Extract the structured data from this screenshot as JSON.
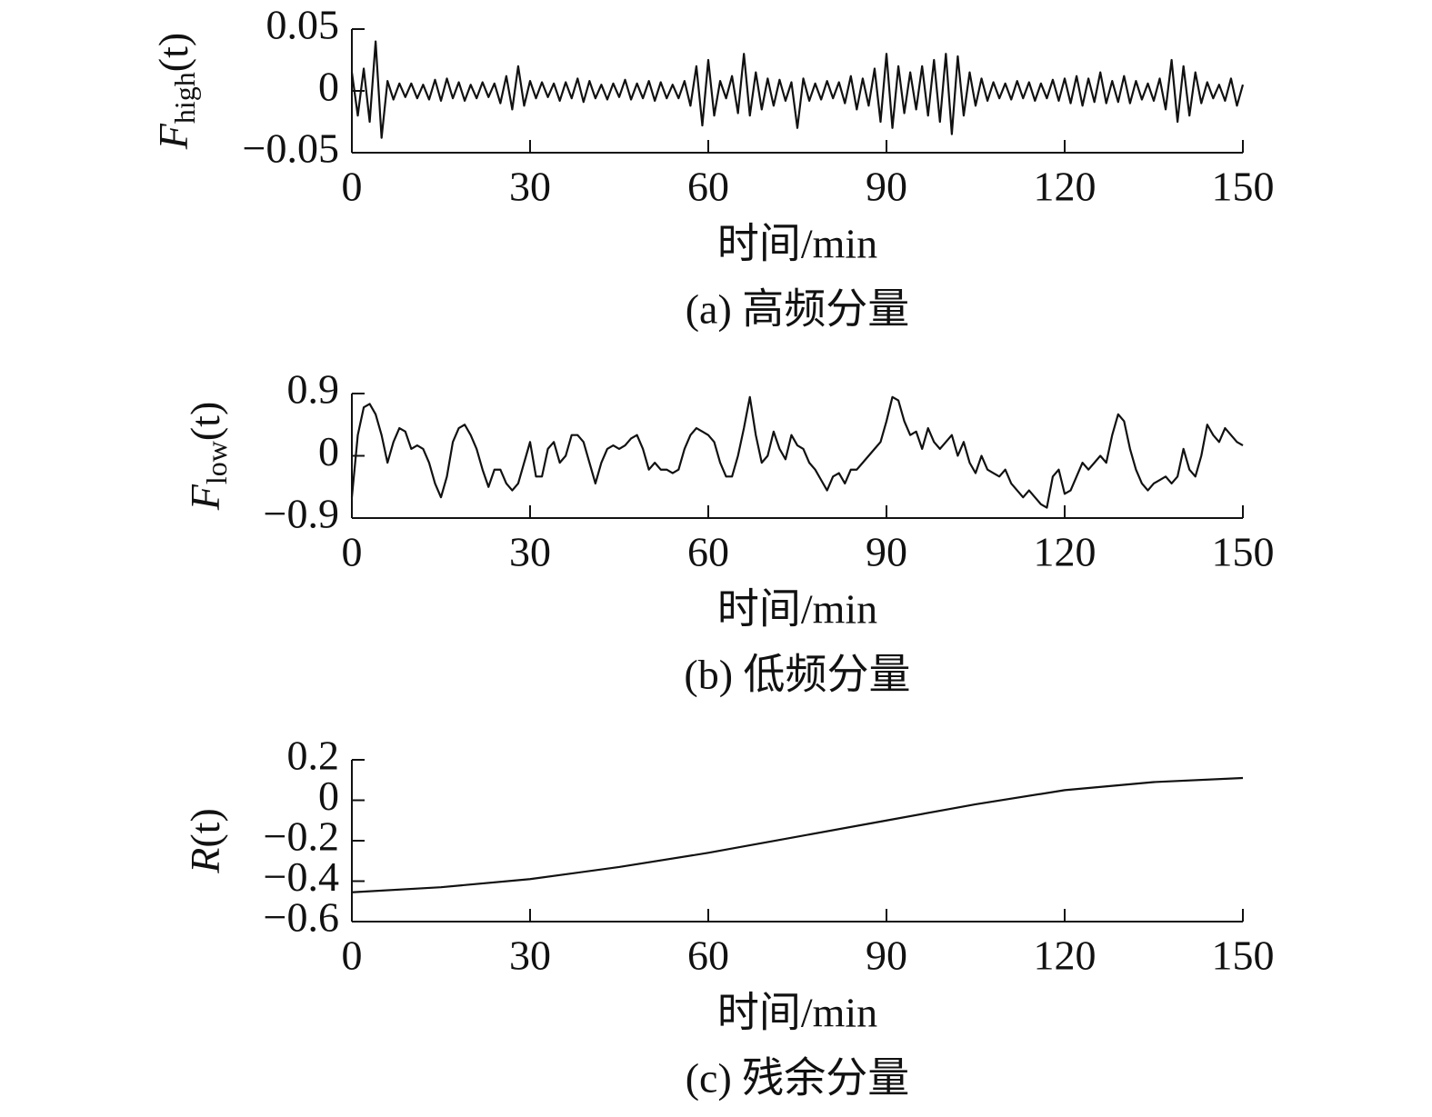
{
  "chart_data": [
    {
      "type": "line",
      "ylabel": {
        "base": "F",
        "sub": "high",
        "arg": "(t)"
      },
      "xlabel": "时间/min",
      "caption": "(a) 高频分量",
      "xlim": [
        0,
        150
      ],
      "xticks": [
        0,
        30,
        60,
        90,
        120,
        150
      ],
      "ylim": [
        -0.05,
        0.05
      ],
      "yticks": [
        {
          "value": -0.05,
          "label": "−0.05"
        },
        0,
        0.05
      ],
      "color": "#111111",
      "x": [
        0,
        1,
        2,
        3,
        4,
        5,
        6,
        7,
        8,
        9,
        10,
        11,
        12,
        13,
        14,
        15,
        16,
        17,
        18,
        19,
        20,
        21,
        22,
        23,
        24,
        25,
        26,
        27,
        28,
        29,
        30,
        31,
        32,
        33,
        34,
        35,
        36,
        37,
        38,
        39,
        40,
        41,
        42,
        43,
        44,
        45,
        46,
        47,
        48,
        49,
        50,
        51,
        52,
        53,
        54,
        55,
        56,
        57,
        58,
        59,
        60,
        61,
        62,
        63,
        64,
        65,
        66,
        67,
        68,
        69,
        70,
        71,
        72,
        73,
        74,
        75,
        76,
        77,
        78,
        79,
        80,
        81,
        82,
        83,
        84,
        85,
        86,
        87,
        88,
        89,
        90,
        91,
        92,
        93,
        94,
        95,
        96,
        97,
        98,
        99,
        100,
        101,
        102,
        103,
        104,
        105,
        106,
        107,
        108,
        109,
        110,
        111,
        112,
        113,
        114,
        115,
        116,
        117,
        118,
        119,
        120,
        121,
        122,
        123,
        124,
        125,
        126,
        127,
        128,
        129,
        130,
        131,
        132,
        133,
        134,
        135,
        136,
        137,
        138,
        139,
        140,
        141,
        142,
        143,
        144,
        145,
        146,
        147,
        148,
        149,
        150
      ],
      "values": [
        0.015,
        -0.02,
        0.018,
        -0.025,
        0.04,
        -0.038,
        0.008,
        -0.007,
        0.006,
        -0.005,
        0.006,
        -0.006,
        0.005,
        -0.007,
        0.009,
        -0.008,
        0.01,
        -0.006,
        0.007,
        -0.008,
        0.005,
        -0.006,
        0.007,
        -0.005,
        0.006,
        -0.01,
        0.012,
        -0.015,
        0.02,
        -0.012,
        0.008,
        -0.006,
        0.007,
        -0.005,
        0.006,
        -0.008,
        0.007,
        -0.006,
        0.01,
        -0.009,
        0.008,
        -0.006,
        0.005,
        -0.007,
        0.006,
        -0.005,
        0.009,
        -0.007,
        0.006,
        -0.006,
        0.008,
        -0.008,
        0.007,
        -0.006,
        0.005,
        -0.006,
        0.008,
        -0.012,
        0.02,
        -0.028,
        0.025,
        -0.02,
        0.008,
        -0.006,
        0.012,
        -0.018,
        0.03,
        -0.02,
        0.015,
        -0.015,
        0.01,
        -0.012,
        0.009,
        -0.008,
        0.007,
        -0.03,
        0.01,
        -0.008,
        0.006,
        -0.007,
        0.008,
        -0.006,
        0.007,
        -0.01,
        0.012,
        -0.015,
        0.01,
        -0.012,
        0.018,
        -0.025,
        0.03,
        -0.03,
        0.02,
        -0.018,
        0.015,
        -0.015,
        0.02,
        -0.02,
        0.025,
        -0.025,
        0.03,
        -0.035,
        0.028,
        -0.02,
        0.015,
        -0.012,
        0.01,
        -0.008,
        0.007,
        -0.006,
        0.006,
        -0.007,
        0.008,
        -0.006,
        0.007,
        -0.008,
        0.006,
        -0.006,
        0.009,
        -0.008,
        0.01,
        -0.01,
        0.012,
        -0.012,
        0.01,
        -0.009,
        0.015,
        -0.01,
        0.008,
        -0.009,
        0.012,
        -0.01,
        0.008,
        -0.007,
        0.006,
        -0.008,
        0.01,
        -0.015,
        0.025,
        -0.025,
        0.02,
        -0.02,
        0.015,
        -0.01,
        0.007,
        -0.006,
        0.005,
        -0.008,
        0.01,
        -0.012,
        0.005
      ]
    },
    {
      "type": "line",
      "ylabel": {
        "base": "F",
        "sub": "low",
        "arg": "(t)"
      },
      "xlabel": "时间/min",
      "caption": "(b) 低频分量",
      "xlim": [
        0,
        150
      ],
      "xticks": [
        0,
        30,
        60,
        90,
        120,
        150
      ],
      "ylim": [
        -0.9,
        0.9
      ],
      "yticks": [
        {
          "value": -0.9,
          "label": "−0.9"
        },
        0,
        0.9
      ],
      "color": "#111111",
      "x": [
        0,
        1,
        2,
        3,
        4,
        5,
        6,
        7,
        8,
        9,
        10,
        11,
        12,
        13,
        14,
        15,
        16,
        17,
        18,
        19,
        20,
        21,
        22,
        23,
        24,
        25,
        26,
        27,
        28,
        29,
        30,
        31,
        32,
        33,
        34,
        35,
        36,
        37,
        38,
        39,
        40,
        41,
        42,
        43,
        44,
        45,
        46,
        47,
        48,
        49,
        50,
        51,
        52,
        53,
        54,
        55,
        56,
        57,
        58,
        59,
        60,
        61,
        62,
        63,
        64,
        65,
        66,
        67,
        68,
        69,
        70,
        71,
        72,
        73,
        74,
        75,
        76,
        77,
        78,
        79,
        80,
        81,
        82,
        83,
        84,
        85,
        86,
        87,
        88,
        89,
        90,
        91,
        92,
        93,
        94,
        95,
        96,
        97,
        98,
        99,
        100,
        101,
        102,
        103,
        104,
        105,
        106,
        107,
        108,
        109,
        110,
        111,
        112,
        113,
        114,
        115,
        116,
        117,
        118,
        119,
        120,
        121,
        122,
        123,
        124,
        125,
        126,
        127,
        128,
        129,
        130,
        131,
        132,
        133,
        134,
        135,
        136,
        137,
        138,
        139,
        140,
        141,
        142,
        143,
        144,
        145,
        146,
        147,
        148,
        149,
        150
      ],
      "values": [
        -0.6,
        0.3,
        0.7,
        0.75,
        0.6,
        0.3,
        -0.1,
        0.2,
        0.4,
        0.35,
        0.1,
        0.15,
        0.1,
        -0.1,
        -0.4,
        -0.6,
        -0.3,
        0.2,
        0.4,
        0.45,
        0.3,
        0.1,
        -0.2,
        -0.45,
        -0.2,
        -0.2,
        -0.4,
        -0.5,
        -0.4,
        -0.1,
        0.2,
        -0.3,
        -0.3,
        0.1,
        0.2,
        -0.1,
        0.0,
        0.3,
        0.3,
        0.2,
        -0.1,
        -0.4,
        -0.1,
        0.1,
        0.15,
        0.1,
        0.15,
        0.25,
        0.3,
        0.1,
        -0.2,
        -0.1,
        -0.2,
        -0.2,
        -0.25,
        -0.2,
        0.1,
        0.3,
        0.4,
        0.35,
        0.3,
        0.2,
        -0.1,
        -0.3,
        -0.3,
        0.0,
        0.4,
        0.85,
        0.3,
        -0.1,
        0.0,
        0.35,
        0.1,
        -0.05,
        0.3,
        0.15,
        0.1,
        -0.1,
        -0.2,
        -0.35,
        -0.5,
        -0.3,
        -0.25,
        -0.4,
        -0.2,
        -0.2,
        -0.1,
        0.0,
        0.1,
        0.2,
        0.5,
        0.85,
        0.8,
        0.5,
        0.3,
        0.35,
        0.1,
        0.4,
        0.2,
        0.1,
        0.2,
        0.3,
        0.0,
        0.2,
        -0.1,
        -0.25,
        0.0,
        -0.2,
        -0.25,
        -0.3,
        -0.2,
        -0.4,
        -0.5,
        -0.6,
        -0.5,
        -0.6,
        -0.7,
        -0.75,
        -0.3,
        -0.2,
        -0.55,
        -0.5,
        -0.3,
        -0.1,
        -0.2,
        -0.1,
        0.0,
        -0.1,
        0.3,
        0.6,
        0.5,
        0.1,
        -0.2,
        -0.4,
        -0.5,
        -0.4,
        -0.35,
        -0.3,
        -0.4,
        -0.3,
        0.1,
        -0.2,
        -0.3,
        0.0,
        0.45,
        0.3,
        0.2,
        0.4,
        0.3,
        0.2,
        0.15
      ]
    },
    {
      "type": "line",
      "ylabel": {
        "base": "R",
        "arg": "(t)"
      },
      "xlabel": "时间/min",
      "caption": "(c) 残余分量",
      "xlim": [
        0,
        150
      ],
      "xticks": [
        0,
        30,
        60,
        90,
        120,
        150
      ],
      "ylim": [
        -0.6,
        0.2
      ],
      "yticks": [
        {
          "value": -0.6,
          "label": "−0.6"
        },
        {
          "value": -0.4,
          "label": "−0.4"
        },
        {
          "value": -0.2,
          "label": "−0.2"
        },
        0,
        0.2
      ],
      "color": "#111111",
      "x": [
        0,
        15,
        30,
        45,
        60,
        75,
        90,
        105,
        120,
        135,
        150
      ],
      "values": [
        -0.455,
        -0.43,
        -0.39,
        -0.33,
        -0.26,
        -0.18,
        -0.1,
        -0.02,
        0.05,
        0.09,
        0.11
      ]
    }
  ]
}
